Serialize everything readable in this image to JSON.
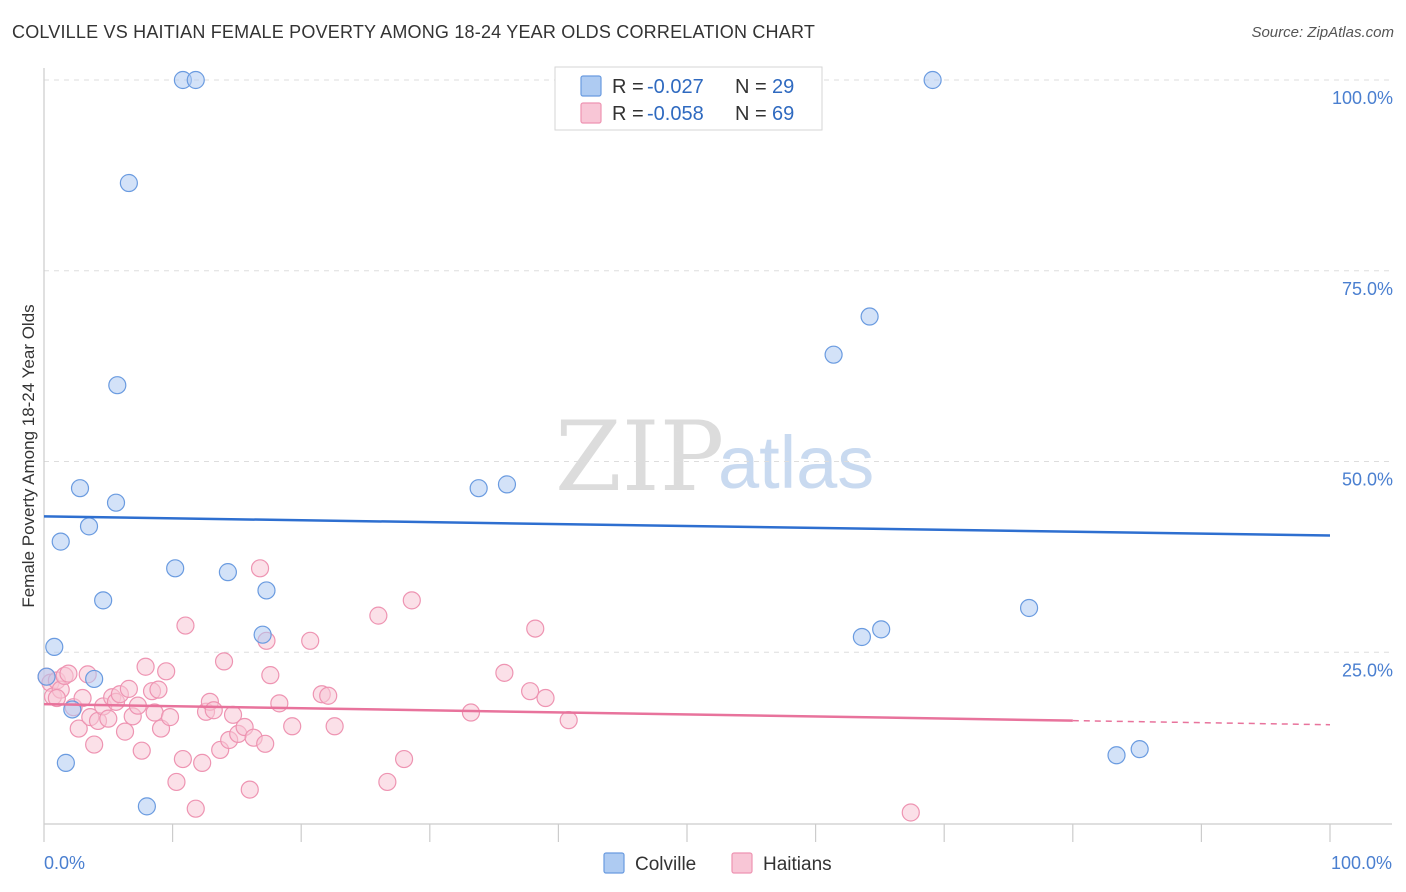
{
  "header": {
    "title": "COLVILLE VS HAITIAN FEMALE POVERTY AMONG 18-24 YEAR OLDS CORRELATION CHART",
    "source": "Source: ZipAtlas.com"
  },
  "colors": {
    "colville_fill": "#aecbf2",
    "colville_stroke": "#6a9be0",
    "colville_line": "#2e6fd0",
    "haitians_fill": "#f8c6d6",
    "haitians_stroke": "#ee94b2",
    "haitians_line": "#e8739c",
    "grid": "#dddddd",
    "axis_text": "#4a7fd0"
  },
  "legend": {
    "rows": [
      {
        "r_label": "R =",
        "r_value": "-0.027",
        "n_label": "N =",
        "n_value": "29"
      },
      {
        "r_label": "R =",
        "r_value": "-0.058",
        "n_label": "N =",
        "n_value": "69"
      }
    ]
  },
  "bottom_legend": {
    "colville": "Colville",
    "haitians": "Haitians"
  },
  "watermark": {
    "zip": "ZIP",
    "atlas": "atlas"
  },
  "chart_data": {
    "type": "scatter",
    "title": "COLVILLE VS HAITIAN FEMALE POVERTY AMONG 18-24 YEAR OLDS CORRELATION CHART",
    "xlabel": "",
    "ylabel": "Female Poverty Among 18-24 Year Olds",
    "xlim": [
      0,
      100
    ],
    "ylim": [
      0,
      100
    ],
    "x_tick_labels": [
      "0.0%",
      "100.0%"
    ],
    "y_ticks": [
      25,
      50,
      75,
      100
    ],
    "y_tick_labels": [
      "25.0%",
      "50.0%",
      "75.0%",
      "100.0%"
    ],
    "grid": true,
    "legend_position": "top-center",
    "series": [
      {
        "name": "Colville",
        "r": -0.027,
        "n": 29,
        "trend": {
          "x": [
            0,
            100
          ],
          "y": [
            42.8,
            40.3
          ],
          "dashed_from": null
        },
        "points": [
          {
            "x": 0.2,
            "y": 21.8
          },
          {
            "x": 0.8,
            "y": 25.7
          },
          {
            "x": 1.3,
            "y": 39.5
          },
          {
            "x": 1.7,
            "y": 10.5
          },
          {
            "x": 2.2,
            "y": 17.5
          },
          {
            "x": 2.8,
            "y": 46.5
          },
          {
            "x": 3.5,
            "y": 41.5
          },
          {
            "x": 3.9,
            "y": 21.5
          },
          {
            "x": 4.6,
            "y": 31.8
          },
          {
            "x": 5.6,
            "y": 44.6
          },
          {
            "x": 5.7,
            "y": 60.0
          },
          {
            "x": 6.6,
            "y": 86.5
          },
          {
            "x": 8.0,
            "y": 4.8
          },
          {
            "x": 10.2,
            "y": 36.0
          },
          {
            "x": 10.8,
            "y": 100.0
          },
          {
            "x": 11.8,
            "y": 100.0
          },
          {
            "x": 14.3,
            "y": 35.5
          },
          {
            "x": 17.0,
            "y": 27.3
          },
          {
            "x": 17.3,
            "y": 33.1
          },
          {
            "x": 33.8,
            "y": 46.5
          },
          {
            "x": 36.0,
            "y": 47.0
          },
          {
            "x": 61.4,
            "y": 64.0
          },
          {
            "x": 64.2,
            "y": 69.0
          },
          {
            "x": 69.1,
            "y": 100.0
          },
          {
            "x": 63.6,
            "y": 27.0
          },
          {
            "x": 65.1,
            "y": 28.0
          },
          {
            "x": 76.6,
            "y": 30.8
          },
          {
            "x": 83.4,
            "y": 11.5
          },
          {
            "x": 85.2,
            "y": 12.3
          }
        ]
      },
      {
        "name": "Haitians",
        "r": -0.058,
        "n": 69,
        "trend": {
          "x": [
            0,
            100
          ],
          "y": [
            18.2,
            15.5
          ],
          "dashed_from": 80
        },
        "points": [
          {
            "x": 0.2,
            "y": 21.8
          },
          {
            "x": 0.5,
            "y": 21.0
          },
          {
            "x": 0.7,
            "y": 19.2
          },
          {
            "x": 1.0,
            "y": 21.3
          },
          {
            "x": 1.3,
            "y": 20.1
          },
          {
            "x": 1.6,
            "y": 21.9
          },
          {
            "x": 1.9,
            "y": 22.2
          },
          {
            "x": 2.3,
            "y": 17.8
          },
          {
            "x": 2.7,
            "y": 15.0
          },
          {
            "x": 3.0,
            "y": 19.0
          },
          {
            "x": 3.4,
            "y": 22.1
          },
          {
            "x": 3.6,
            "y": 16.5
          },
          {
            "x": 3.9,
            "y": 12.9
          },
          {
            "x": 4.2,
            "y": 16.0
          },
          {
            "x": 4.6,
            "y": 17.9
          },
          {
            "x": 5.0,
            "y": 16.3
          },
          {
            "x": 5.3,
            "y": 19.1
          },
          {
            "x": 5.6,
            "y": 18.5
          },
          {
            "x": 5.9,
            "y": 19.5
          },
          {
            "x": 6.3,
            "y": 14.6
          },
          {
            "x": 6.6,
            "y": 20.2
          },
          {
            "x": 6.9,
            "y": 16.6
          },
          {
            "x": 7.3,
            "y": 18.0
          },
          {
            "x": 7.6,
            "y": 12.1
          },
          {
            "x": 7.9,
            "y": 23.1
          },
          {
            "x": 8.4,
            "y": 19.9
          },
          {
            "x": 8.6,
            "y": 17.1
          },
          {
            "x": 8.9,
            "y": 20.1
          },
          {
            "x": 9.1,
            "y": 15.0
          },
          {
            "x": 9.5,
            "y": 22.5
          },
          {
            "x": 9.8,
            "y": 16.5
          },
          {
            "x": 10.3,
            "y": 8.0
          },
          {
            "x": 10.8,
            "y": 11.0
          },
          {
            "x": 11.0,
            "y": 28.5
          },
          {
            "x": 11.8,
            "y": 4.5
          },
          {
            "x": 12.3,
            "y": 10.5
          },
          {
            "x": 12.6,
            "y": 17.2
          },
          {
            "x": 12.9,
            "y": 18.5
          },
          {
            "x": 13.2,
            "y": 17.4
          },
          {
            "x": 13.7,
            "y": 12.2
          },
          {
            "x": 14.0,
            "y": 23.8
          },
          {
            "x": 14.4,
            "y": 13.5
          },
          {
            "x": 14.7,
            "y": 16.8
          },
          {
            "x": 15.1,
            "y": 14.3
          },
          {
            "x": 15.6,
            "y": 15.2
          },
          {
            "x": 16.0,
            "y": 7.0
          },
          {
            "x": 16.3,
            "y": 13.8
          },
          {
            "x": 16.8,
            "y": 36.0
          },
          {
            "x": 17.2,
            "y": 13.0
          },
          {
            "x": 17.3,
            "y": 26.5
          },
          {
            "x": 17.6,
            "y": 22.0
          },
          {
            "x": 18.3,
            "y": 18.3
          },
          {
            "x": 19.3,
            "y": 15.3
          },
          {
            "x": 20.7,
            "y": 26.5
          },
          {
            "x": 21.6,
            "y": 19.5
          },
          {
            "x": 22.1,
            "y": 19.3
          },
          {
            "x": 22.6,
            "y": 15.3
          },
          {
            "x": 26.0,
            "y": 29.8
          },
          {
            "x": 26.7,
            "y": 8.0
          },
          {
            "x": 28.0,
            "y": 11.0
          },
          {
            "x": 28.6,
            "y": 31.8
          },
          {
            "x": 33.2,
            "y": 17.1
          },
          {
            "x": 35.8,
            "y": 22.3
          },
          {
            "x": 37.8,
            "y": 19.9
          },
          {
            "x": 38.2,
            "y": 28.1
          },
          {
            "x": 39.0,
            "y": 19.0
          },
          {
            "x": 40.8,
            "y": 16.1
          },
          {
            "x": 67.4,
            "y": 4.0
          },
          {
            "x": 1.0,
            "y": 19.0
          }
        ]
      }
    ]
  }
}
